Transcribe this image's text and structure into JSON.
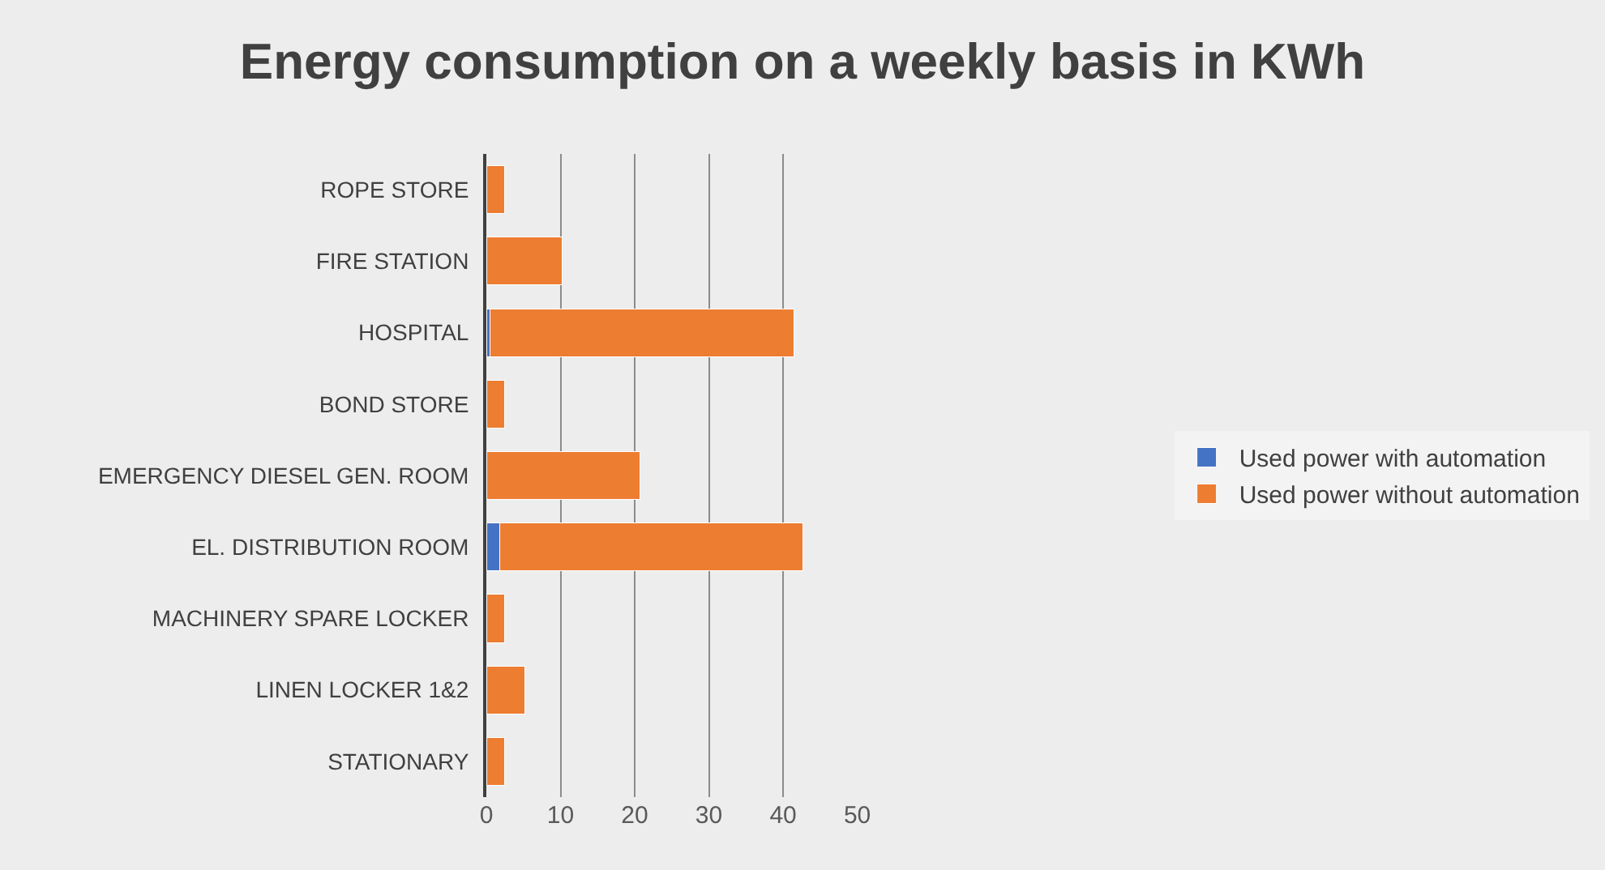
{
  "chart_data": {
    "type": "bar",
    "orientation": "horizontal",
    "stacked": true,
    "title": "Energy consumption on a weekly basis in KWh",
    "categories": [
      "ROPE STORE",
      "FIRE STATION",
      "HOSPITAL",
      "BOND STORE",
      "EMERGENCY DIESEL GEN. ROOM",
      "EL. DISTRIBUTION ROOM",
      "MACHINERY SPARE LOCKER",
      "LINEN LOCKER 1&2",
      "STATIONARY"
    ],
    "series": [
      {
        "name": "Used power with automation",
        "color": "#4472c4",
        "values": [
          0,
          0,
          0.5,
          0,
          0,
          1.8,
          0,
          0,
          0
        ]
      },
      {
        "name": "Used power without automation",
        "color": "#ed7d31",
        "values": [
          2.5,
          10.2,
          41,
          2.5,
          20.7,
          40.9,
          2.5,
          5.2,
          2.5
        ]
      }
    ],
    "xlim": [
      0,
      50
    ],
    "xticks": [
      0,
      10,
      20,
      30,
      40,
      50
    ],
    "grid": "x",
    "legend": "right"
  }
}
